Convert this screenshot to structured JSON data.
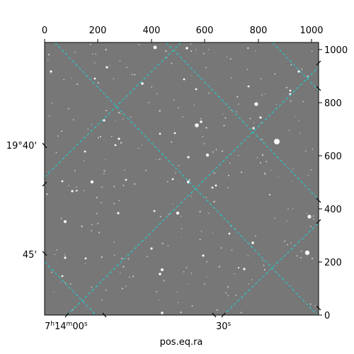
{
  "figure": {
    "xlabel": "pos.eq.ra",
    "pixel_axis_top_ticks": [
      "0",
      "200",
      "400",
      "600",
      "800",
      "1000"
    ],
    "pixel_axis_right_ticks": [
      "1000",
      "800",
      "600",
      "400",
      "200",
      "0"
    ],
    "ra_ticks": [
      {
        "h": "7",
        "m": "14",
        "s": "00"
      },
      {
        "label": "30",
        "sup": "s"
      }
    ],
    "dec_ticks": [
      "19°40'",
      "45'"
    ],
    "colors": {
      "background": "#7a7a7a",
      "grid": "#19d4d4",
      "stars": "#ffffff"
    }
  }
}
